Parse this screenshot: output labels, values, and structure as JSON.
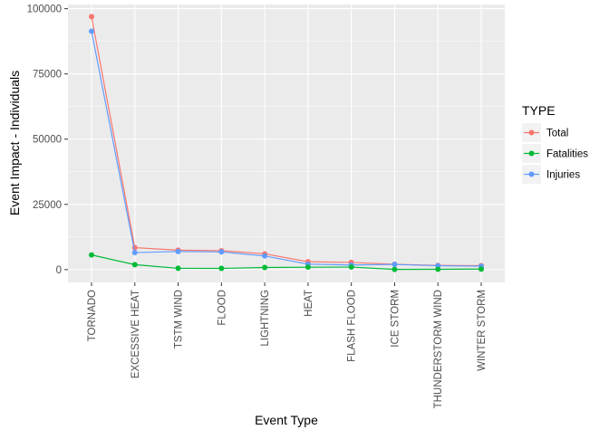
{
  "chart_data": {
    "type": "line",
    "xlabel": "Event Type",
    "ylabel": "Event Impact - Individuals",
    "categories": [
      "TORNADO",
      "EXCESSIVE HEAT",
      "TSTM WIND",
      "FLOOD",
      "LIGHTNING",
      "HEAT",
      "FLASH FLOOD",
      "ICE STORM",
      "THUNDERSTORM WIND",
      "WINTER STORM"
    ],
    "ylim": [
      -4900,
      101600
    ],
    "yticks": [
      0,
      25000,
      50000,
      75000,
      100000
    ],
    "ytick_labels": [
      "0",
      "25000",
      "50000",
      "75000",
      "100000"
    ],
    "grid": true,
    "legend": {
      "title": "TYPE",
      "position": "right"
    },
    "series": [
      {
        "name": "Total",
        "color": "#F8766D",
        "values": [
          96979,
          8428,
          7461,
          7259,
          6046,
          3037,
          2755,
          2064,
          1621,
          1527
        ]
      },
      {
        "name": "Fatalities",
        "color": "#00BA38",
        "values": [
          5633,
          1903,
          504,
          470,
          816,
          937,
          978,
          89,
          133,
          206
        ]
      },
      {
        "name": "Injuries",
        "color": "#619CFF",
        "values": [
          91346,
          6525,
          6957,
          6789,
          5230,
          2100,
          1777,
          1975,
          1488,
          1321
        ]
      }
    ],
    "panel_color": "#EBEBEB",
    "grid_color": "#FFFFFF"
  }
}
